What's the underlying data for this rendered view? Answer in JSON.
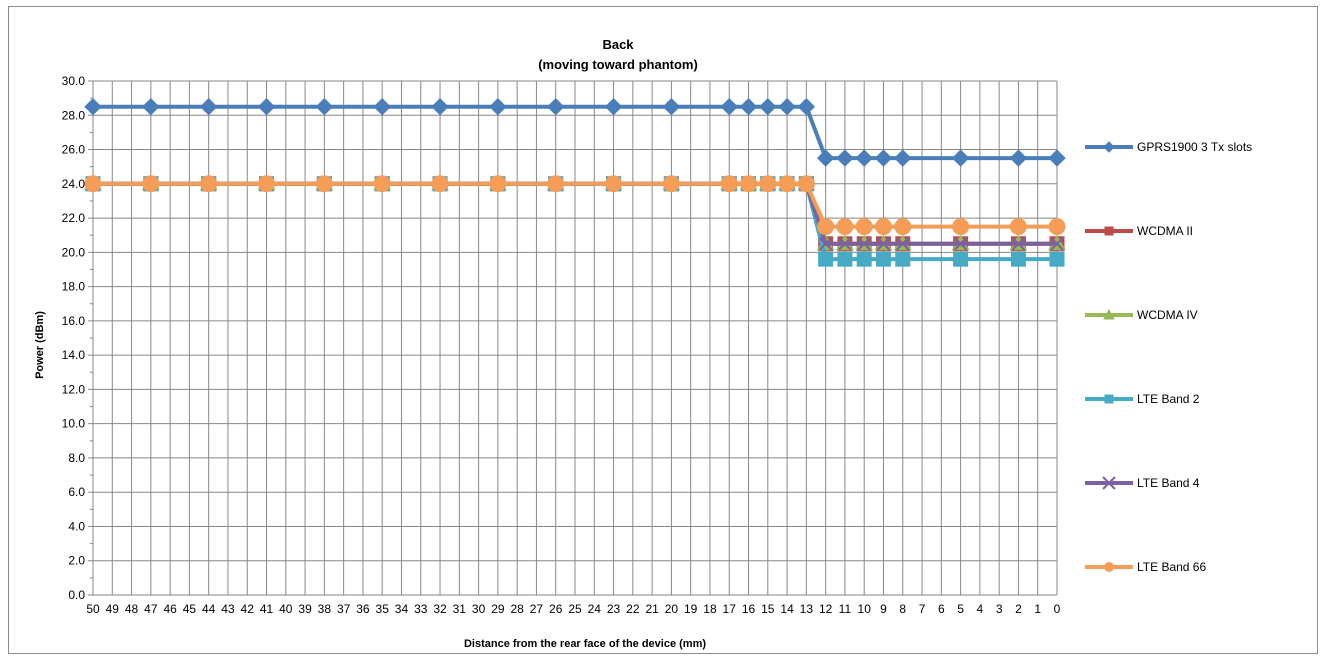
{
  "chart_data": {
    "type": "line",
    "title": "Back",
    "subtitle": "(moving toward phantom)",
    "xlabel": "Distance from the rear face of the device (mm)",
    "ylabel": "Power (dBm)",
    "ylim": [
      0,
      30
    ],
    "ytick_step": 2,
    "grid": true,
    "legend_position": "right",
    "categories": [
      "50",
      "49",
      "48",
      "47",
      "46",
      "45",
      "44",
      "43",
      "42",
      "41",
      "40",
      "39",
      "38",
      "37",
      "36",
      "35",
      "34",
      "33",
      "32",
      "31",
      "30",
      "29",
      "28",
      "27",
      "26",
      "25",
      "24",
      "23",
      "22",
      "21",
      "20",
      "19",
      "18",
      "17",
      "16",
      "15",
      "14",
      "13",
      "12",
      "11",
      "10",
      "9",
      "8",
      "7",
      "6",
      "5",
      "4",
      "3",
      "2",
      "1",
      "0"
    ],
    "series": [
      {
        "name": "GPRS1900 3 Tx slots",
        "color": "#4a7ebb",
        "marker": "diamond",
        "points": [
          {
            "x": "50",
            "y": 28.5
          },
          {
            "x": "47",
            "y": 28.5
          },
          {
            "x": "44",
            "y": 28.5
          },
          {
            "x": "41",
            "y": 28.5
          },
          {
            "x": "38",
            "y": 28.5
          },
          {
            "x": "35",
            "y": 28.5
          },
          {
            "x": "32",
            "y": 28.5
          },
          {
            "x": "29",
            "y": 28.5
          },
          {
            "x": "26",
            "y": 28.5
          },
          {
            "x": "23",
            "y": 28.5
          },
          {
            "x": "20",
            "y": 28.5
          },
          {
            "x": "17",
            "y": 28.5
          },
          {
            "x": "16",
            "y": 28.5
          },
          {
            "x": "15",
            "y": 28.5
          },
          {
            "x": "14",
            "y": 28.5
          },
          {
            "x": "13",
            "y": 28.5
          },
          {
            "x": "12",
            "y": 25.5
          },
          {
            "x": "11",
            "y": 25.5
          },
          {
            "x": "10",
            "y": 25.5
          },
          {
            "x": "9",
            "y": 25.5
          },
          {
            "x": "8",
            "y": 25.5
          },
          {
            "x": "5",
            "y": 25.5
          },
          {
            "x": "2",
            "y": 25.5
          },
          {
            "x": "0",
            "y": 25.5
          }
        ]
      },
      {
        "name": "WCDMA II",
        "color": "#be4b48",
        "marker": "square",
        "points": [
          {
            "x": "50",
            "y": 24.0
          },
          {
            "x": "47",
            "y": 24.0
          },
          {
            "x": "44",
            "y": 24.0
          },
          {
            "x": "41",
            "y": 24.0
          },
          {
            "x": "38",
            "y": 24.0
          },
          {
            "x": "35",
            "y": 24.0
          },
          {
            "x": "32",
            "y": 24.0
          },
          {
            "x": "29",
            "y": 24.0
          },
          {
            "x": "26",
            "y": 24.0
          },
          {
            "x": "23",
            "y": 24.0
          },
          {
            "x": "20",
            "y": 24.0
          },
          {
            "x": "17",
            "y": 24.0
          },
          {
            "x": "16",
            "y": 24.0
          },
          {
            "x": "15",
            "y": 24.0
          },
          {
            "x": "14",
            "y": 24.0
          },
          {
            "x": "13",
            "y": 24.0
          },
          {
            "x": "12",
            "y": 20.5
          },
          {
            "x": "11",
            "y": 20.5
          },
          {
            "x": "10",
            "y": 20.5
          },
          {
            "x": "9",
            "y": 20.5
          },
          {
            "x": "8",
            "y": 20.5
          },
          {
            "x": "5",
            "y": 20.5
          },
          {
            "x": "2",
            "y": 20.5
          },
          {
            "x": "0",
            "y": 20.5
          }
        ]
      },
      {
        "name": "WCDMA IV",
        "color": "#98b954",
        "marker": "triangle",
        "points": [
          {
            "x": "50",
            "y": 24.0
          },
          {
            "x": "47",
            "y": 24.0
          },
          {
            "x": "44",
            "y": 24.0
          },
          {
            "x": "41",
            "y": 24.0
          },
          {
            "x": "38",
            "y": 24.0
          },
          {
            "x": "35",
            "y": 24.0
          },
          {
            "x": "32",
            "y": 24.0
          },
          {
            "x": "29",
            "y": 24.0
          },
          {
            "x": "26",
            "y": 24.0
          },
          {
            "x": "23",
            "y": 24.0
          },
          {
            "x": "20",
            "y": 24.0
          },
          {
            "x": "17",
            "y": 24.0
          },
          {
            "x": "16",
            "y": 24.0
          },
          {
            "x": "15",
            "y": 24.0
          },
          {
            "x": "14",
            "y": 24.0
          },
          {
            "x": "13",
            "y": 24.0
          },
          {
            "x": "12",
            "y": 20.5
          },
          {
            "x": "11",
            "y": 20.5
          },
          {
            "x": "10",
            "y": 20.5
          },
          {
            "x": "9",
            "y": 20.5
          },
          {
            "x": "8",
            "y": 20.5
          },
          {
            "x": "5",
            "y": 20.5
          },
          {
            "x": "2",
            "y": 20.5
          },
          {
            "x": "0",
            "y": 20.5
          }
        ]
      },
      {
        "name": "LTE Band 2",
        "color": "#46aac5",
        "marker": "square",
        "points": [
          {
            "x": "50",
            "y": 24.0
          },
          {
            "x": "47",
            "y": 24.0
          },
          {
            "x": "44",
            "y": 24.0
          },
          {
            "x": "41",
            "y": 24.0
          },
          {
            "x": "38",
            "y": 24.0
          },
          {
            "x": "35",
            "y": 24.0
          },
          {
            "x": "32",
            "y": 24.0
          },
          {
            "x": "29",
            "y": 24.0
          },
          {
            "x": "26",
            "y": 24.0
          },
          {
            "x": "23",
            "y": 24.0
          },
          {
            "x": "20",
            "y": 24.0
          },
          {
            "x": "17",
            "y": 24.0
          },
          {
            "x": "16",
            "y": 24.0
          },
          {
            "x": "15",
            "y": 24.0
          },
          {
            "x": "14",
            "y": 24.0
          },
          {
            "x": "13",
            "y": 24.0
          },
          {
            "x": "12",
            "y": 19.6
          },
          {
            "x": "11",
            "y": 19.6
          },
          {
            "x": "10",
            "y": 19.6
          },
          {
            "x": "9",
            "y": 19.6
          },
          {
            "x": "8",
            "y": 19.6
          },
          {
            "x": "5",
            "y": 19.6
          },
          {
            "x": "2",
            "y": 19.6
          },
          {
            "x": "0",
            "y": 19.6
          }
        ]
      },
      {
        "name": "LTE Band 4",
        "color": "#7d60a0",
        "marker": "x",
        "points": [
          {
            "x": "50",
            "y": 24.0
          },
          {
            "x": "47",
            "y": 24.0
          },
          {
            "x": "44",
            "y": 24.0
          },
          {
            "x": "41",
            "y": 24.0
          },
          {
            "x": "38",
            "y": 24.0
          },
          {
            "x": "35",
            "y": 24.0
          },
          {
            "x": "32",
            "y": 24.0
          },
          {
            "x": "29",
            "y": 24.0
          },
          {
            "x": "26",
            "y": 24.0
          },
          {
            "x": "23",
            "y": 24.0
          },
          {
            "x": "20",
            "y": 24.0
          },
          {
            "x": "17",
            "y": 24.0
          },
          {
            "x": "16",
            "y": 24.0
          },
          {
            "x": "15",
            "y": 24.0
          },
          {
            "x": "14",
            "y": 24.0
          },
          {
            "x": "13",
            "y": 24.0
          },
          {
            "x": "12",
            "y": 20.5
          },
          {
            "x": "11",
            "y": 20.5
          },
          {
            "x": "10",
            "y": 20.5
          },
          {
            "x": "9",
            "y": 20.5
          },
          {
            "x": "8",
            "y": 20.5
          },
          {
            "x": "5",
            "y": 20.5
          },
          {
            "x": "2",
            "y": 20.5
          },
          {
            "x": "0",
            "y": 20.5
          }
        ]
      },
      {
        "name": "LTE Band 66",
        "color": "#f59d56",
        "marker": "circle",
        "points": [
          {
            "x": "50",
            "y": 24.0
          },
          {
            "x": "47",
            "y": 24.0
          },
          {
            "x": "44",
            "y": 24.0
          },
          {
            "x": "41",
            "y": 24.0
          },
          {
            "x": "38",
            "y": 24.0
          },
          {
            "x": "35",
            "y": 24.0
          },
          {
            "x": "32",
            "y": 24.0
          },
          {
            "x": "29",
            "y": 24.0
          },
          {
            "x": "26",
            "y": 24.0
          },
          {
            "x": "23",
            "y": 24.0
          },
          {
            "x": "20",
            "y": 24.0
          },
          {
            "x": "17",
            "y": 24.0
          },
          {
            "x": "16",
            "y": 24.0
          },
          {
            "x": "15",
            "y": 24.0
          },
          {
            "x": "14",
            "y": 24.0
          },
          {
            "x": "13",
            "y": 24.0
          },
          {
            "x": "12",
            "y": 21.5
          },
          {
            "x": "11",
            "y": 21.5
          },
          {
            "x": "10",
            "y": 21.5
          },
          {
            "x": "9",
            "y": 21.5
          },
          {
            "x": "8",
            "y": 21.5
          },
          {
            "x": "5",
            "y": 21.5
          },
          {
            "x": "2",
            "y": 21.5
          },
          {
            "x": "0",
            "y": 21.5
          }
        ]
      }
    ]
  }
}
